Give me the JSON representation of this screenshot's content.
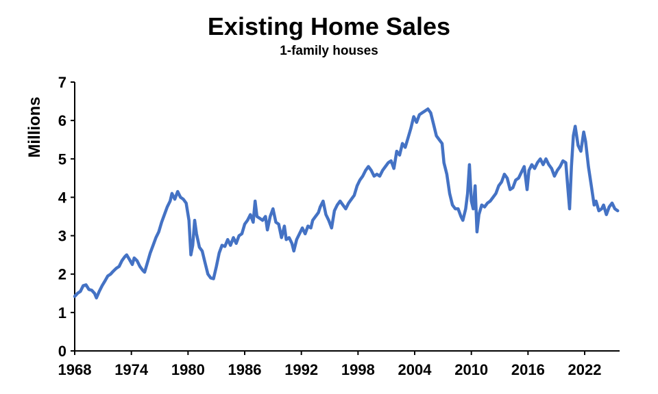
{
  "chart_data": {
    "type": "line",
    "title": "Existing Home Sales",
    "subtitle": "1-family houses",
    "xlabel": "",
    "ylabel": "Millions",
    "xlim": [
      1968,
      2025.7
    ],
    "ylim": [
      0,
      7
    ],
    "x_ticks": [
      "1968",
      "1974",
      "1980",
      "1986",
      "1992",
      "1998",
      "2004",
      "2010",
      "2016",
      "2022"
    ],
    "y_ticks": [
      "0",
      "1",
      "2",
      "3",
      "4",
      "5",
      "6",
      "7"
    ],
    "grid": false,
    "legend": "none",
    "series": [
      {
        "color": "#4472C4",
        "points": [
          [
            1968.0,
            1.42
          ],
          [
            1968.3,
            1.5
          ],
          [
            1968.6,
            1.55
          ],
          [
            1968.9,
            1.7
          ],
          [
            1969.2,
            1.72
          ],
          [
            1969.5,
            1.6
          ],
          [
            1969.8,
            1.58
          ],
          [
            1970.1,
            1.5
          ],
          [
            1970.3,
            1.38
          ],
          [
            1970.6,
            1.55
          ],
          [
            1970.9,
            1.7
          ],
          [
            1971.2,
            1.82
          ],
          [
            1971.5,
            1.95
          ],
          [
            1971.8,
            2.0
          ],
          [
            1972.1,
            2.08
          ],
          [
            1972.4,
            2.15
          ],
          [
            1972.7,
            2.2
          ],
          [
            1973.0,
            2.35
          ],
          [
            1973.3,
            2.45
          ],
          [
            1973.5,
            2.5
          ],
          [
            1973.8,
            2.38
          ],
          [
            1974.1,
            2.25
          ],
          [
            1974.3,
            2.42
          ],
          [
            1974.6,
            2.35
          ],
          [
            1974.9,
            2.2
          ],
          [
            1975.2,
            2.1
          ],
          [
            1975.4,
            2.05
          ],
          [
            1975.7,
            2.3
          ],
          [
            1976.0,
            2.55
          ],
          [
            1976.3,
            2.75
          ],
          [
            1976.6,
            2.95
          ],
          [
            1976.9,
            3.1
          ],
          [
            1977.2,
            3.35
          ],
          [
            1977.5,
            3.55
          ],
          [
            1977.8,
            3.75
          ],
          [
            1978.1,
            3.9
          ],
          [
            1978.3,
            4.1
          ],
          [
            1978.6,
            3.95
          ],
          [
            1978.9,
            4.15
          ],
          [
            1979.2,
            4.0
          ],
          [
            1979.5,
            3.95
          ],
          [
            1979.8,
            3.85
          ],
          [
            1980.1,
            3.4
          ],
          [
            1980.3,
            2.5
          ],
          [
            1980.5,
            2.75
          ],
          [
            1980.7,
            3.4
          ],
          [
            1980.9,
            3.05
          ],
          [
            1981.2,
            2.7
          ],
          [
            1981.5,
            2.6
          ],
          [
            1981.8,
            2.3
          ],
          [
            1982.1,
            2.0
          ],
          [
            1982.4,
            1.9
          ],
          [
            1982.7,
            1.88
          ],
          [
            1983.0,
            2.2
          ],
          [
            1983.3,
            2.55
          ],
          [
            1983.6,
            2.75
          ],
          [
            1983.9,
            2.72
          ],
          [
            1984.2,
            2.9
          ],
          [
            1984.5,
            2.75
          ],
          [
            1984.8,
            2.95
          ],
          [
            1985.1,
            2.8
          ],
          [
            1985.4,
            3.0
          ],
          [
            1985.7,
            3.05
          ],
          [
            1986.0,
            3.3
          ],
          [
            1986.3,
            3.4
          ],
          [
            1986.6,
            3.55
          ],
          [
            1986.9,
            3.35
          ],
          [
            1987.1,
            3.9
          ],
          [
            1987.3,
            3.5
          ],
          [
            1987.6,
            3.45
          ],
          [
            1987.9,
            3.4
          ],
          [
            1988.2,
            3.5
          ],
          [
            1988.4,
            3.15
          ],
          [
            1988.7,
            3.5
          ],
          [
            1989.0,
            3.7
          ],
          [
            1989.3,
            3.35
          ],
          [
            1989.6,
            3.3
          ],
          [
            1989.9,
            2.95
          ],
          [
            1990.2,
            3.25
          ],
          [
            1990.4,
            2.9
          ],
          [
            1990.7,
            2.95
          ],
          [
            1991.0,
            2.8
          ],
          [
            1991.2,
            2.6
          ],
          [
            1991.5,
            2.9
          ],
          [
            1991.8,
            3.05
          ],
          [
            1992.1,
            3.2
          ],
          [
            1992.4,
            3.05
          ],
          [
            1992.7,
            3.25
          ],
          [
            1993.0,
            3.2
          ],
          [
            1993.2,
            3.4
          ],
          [
            1993.5,
            3.5
          ],
          [
            1993.8,
            3.6
          ],
          [
            1994.0,
            3.75
          ],
          [
            1994.3,
            3.9
          ],
          [
            1994.6,
            3.55
          ],
          [
            1994.9,
            3.4
          ],
          [
            1995.2,
            3.2
          ],
          [
            1995.5,
            3.65
          ],
          [
            1995.8,
            3.8
          ],
          [
            1996.1,
            3.9
          ],
          [
            1996.4,
            3.8
          ],
          [
            1996.7,
            3.7
          ],
          [
            1997.0,
            3.85
          ],
          [
            1997.3,
            3.95
          ],
          [
            1997.6,
            4.05
          ],
          [
            1997.9,
            4.3
          ],
          [
            1998.2,
            4.45
          ],
          [
            1998.5,
            4.55
          ],
          [
            1998.8,
            4.7
          ],
          [
            1999.1,
            4.8
          ],
          [
            1999.4,
            4.7
          ],
          [
            1999.7,
            4.55
          ],
          [
            2000.0,
            4.6
          ],
          [
            2000.3,
            4.55
          ],
          [
            2000.6,
            4.7
          ],
          [
            2000.9,
            4.8
          ],
          [
            2001.2,
            4.9
          ],
          [
            2001.5,
            4.95
          ],
          [
            2001.8,
            4.75
          ],
          [
            2002.1,
            5.2
          ],
          [
            2002.4,
            5.1
          ],
          [
            2002.7,
            5.4
          ],
          [
            2003.0,
            5.3
          ],
          [
            2003.3,
            5.55
          ],
          [
            2003.6,
            5.8
          ],
          [
            2003.9,
            6.1
          ],
          [
            2004.2,
            5.95
          ],
          [
            2004.5,
            6.15
          ],
          [
            2004.8,
            6.2
          ],
          [
            2005.1,
            6.25
          ],
          [
            2005.4,
            6.3
          ],
          [
            2005.7,
            6.2
          ],
          [
            2006.0,
            5.9
          ],
          [
            2006.3,
            5.6
          ],
          [
            2006.6,
            5.5
          ],
          [
            2006.9,
            5.4
          ],
          [
            2007.1,
            4.9
          ],
          [
            2007.4,
            4.6
          ],
          [
            2007.7,
            4.1
          ],
          [
            2008.0,
            3.8
          ],
          [
            2008.3,
            3.7
          ],
          [
            2008.6,
            3.7
          ],
          [
            2008.9,
            3.5
          ],
          [
            2009.1,
            3.4
          ],
          [
            2009.4,
            3.7
          ],
          [
            2009.6,
            4.1
          ],
          [
            2009.8,
            4.85
          ],
          [
            2010.0,
            3.9
          ],
          [
            2010.2,
            3.7
          ],
          [
            2010.4,
            4.3
          ],
          [
            2010.6,
            3.1
          ],
          [
            2010.8,
            3.55
          ],
          [
            2011.1,
            3.8
          ],
          [
            2011.4,
            3.75
          ],
          [
            2011.7,
            3.85
          ],
          [
            2012.0,
            3.9
          ],
          [
            2012.3,
            4.0
          ],
          [
            2012.6,
            4.1
          ],
          [
            2012.9,
            4.3
          ],
          [
            2013.2,
            4.4
          ],
          [
            2013.5,
            4.6
          ],
          [
            2013.8,
            4.5
          ],
          [
            2014.1,
            4.2
          ],
          [
            2014.4,
            4.25
          ],
          [
            2014.7,
            4.45
          ],
          [
            2015.0,
            4.5
          ],
          [
            2015.3,
            4.65
          ],
          [
            2015.6,
            4.8
          ],
          [
            2015.9,
            4.2
          ],
          [
            2016.1,
            4.7
          ],
          [
            2016.4,
            4.85
          ],
          [
            2016.7,
            4.75
          ],
          [
            2017.0,
            4.9
          ],
          [
            2017.3,
            5.0
          ],
          [
            2017.6,
            4.85
          ],
          [
            2017.9,
            5.0
          ],
          [
            2018.2,
            4.85
          ],
          [
            2018.5,
            4.75
          ],
          [
            2018.8,
            4.55
          ],
          [
            2019.1,
            4.7
          ],
          [
            2019.4,
            4.8
          ],
          [
            2019.7,
            4.95
          ],
          [
            2020.0,
            4.9
          ],
          [
            2020.2,
            4.3
          ],
          [
            2020.4,
            3.7
          ],
          [
            2020.6,
            4.8
          ],
          [
            2020.8,
            5.6
          ],
          [
            2021.0,
            5.85
          ],
          [
            2021.3,
            5.35
          ],
          [
            2021.6,
            5.2
          ],
          [
            2021.9,
            5.7
          ],
          [
            2022.1,
            5.45
          ],
          [
            2022.4,
            4.8
          ],
          [
            2022.7,
            4.3
          ],
          [
            2023.0,
            3.8
          ],
          [
            2023.2,
            3.9
          ],
          [
            2023.5,
            3.65
          ],
          [
            2023.8,
            3.7
          ],
          [
            2024.0,
            3.8
          ],
          [
            2024.3,
            3.55
          ],
          [
            2024.6,
            3.75
          ],
          [
            2024.9,
            3.85
          ],
          [
            2025.2,
            3.7
          ],
          [
            2025.5,
            3.65
          ]
        ]
      }
    ]
  }
}
